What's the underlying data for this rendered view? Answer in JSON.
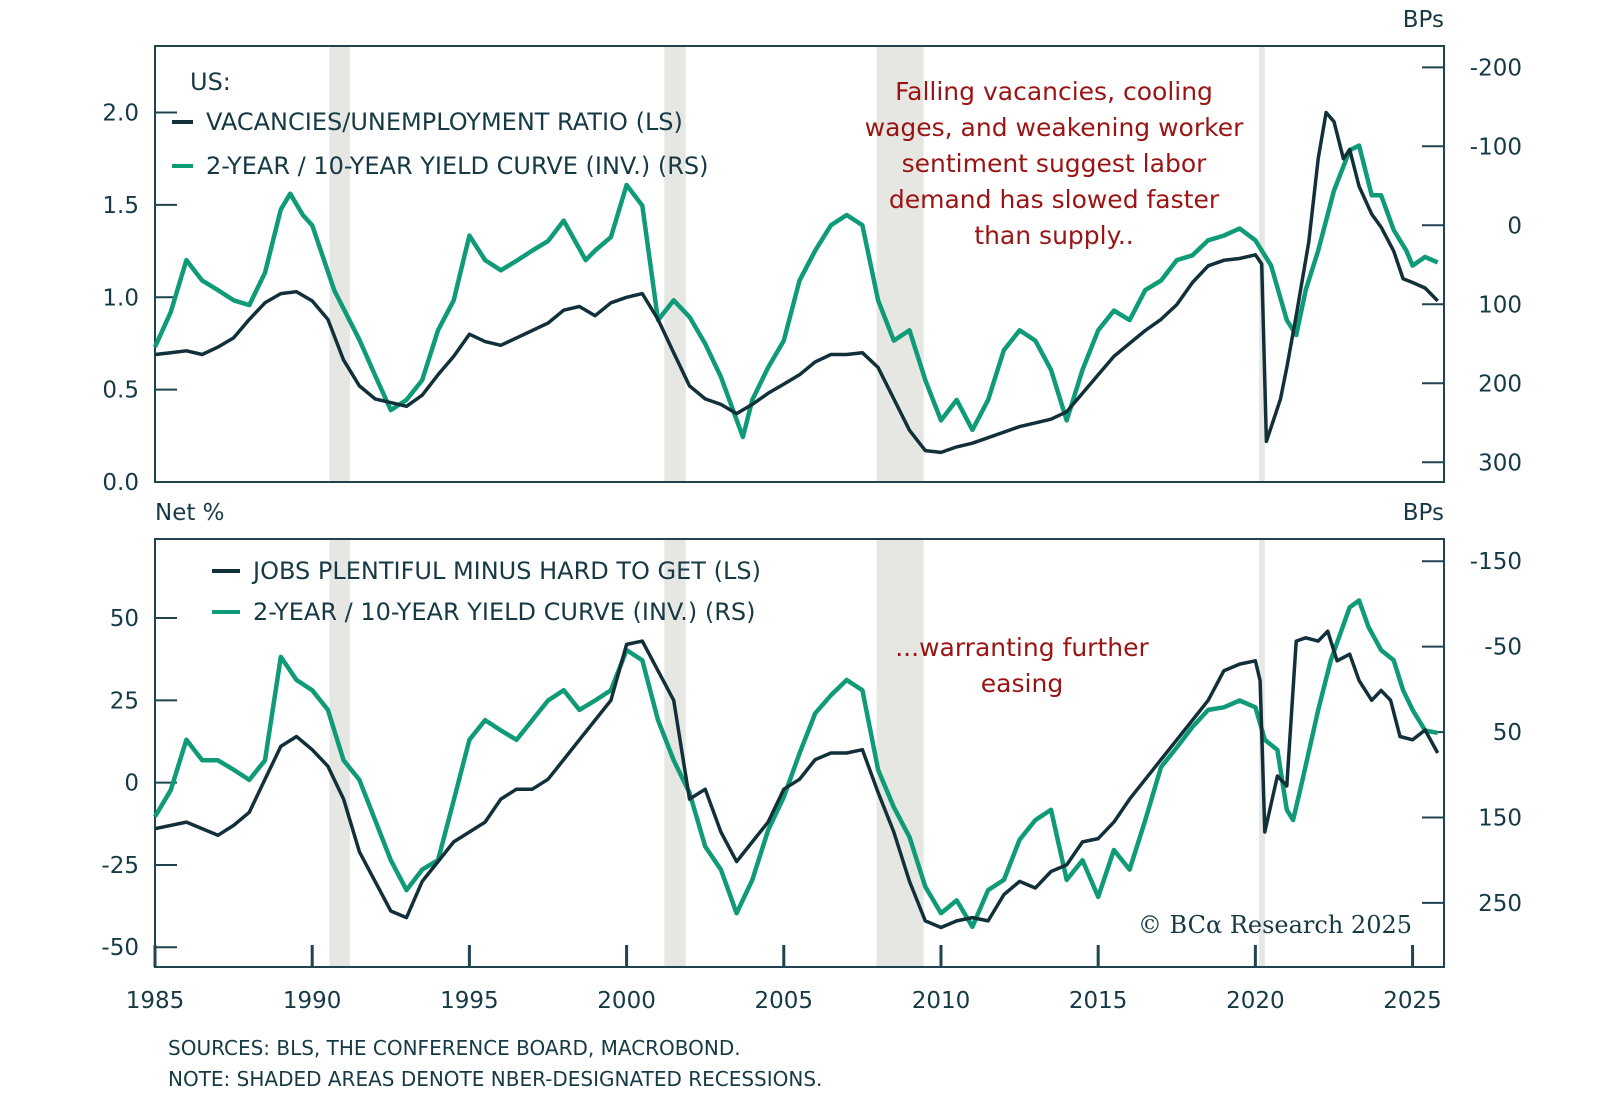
{
  "chart_data": [
    {
      "type": "line",
      "panel": "top",
      "title": "US:",
      "xlim": [
        1985,
        2026
      ],
      "left_axis": {
        "label": "",
        "ylim": [
          0.0,
          2.36
        ],
        "ticks": [
          0.0,
          0.5,
          1.0,
          1.5,
          2.0
        ],
        "tick_labels": [
          "0.0",
          "0.5",
          "1.0",
          "1.5",
          "2.0"
        ]
      },
      "right_axis": {
        "label": "BPs",
        "inverted": true,
        "ylim": [
          -227,
          325
        ],
        "ticks": [
          -200,
          -100,
          0,
          100,
          200,
          300
        ],
        "tick_labels": [
          "-200",
          "-100",
          "0",
          "100",
          "200",
          "300"
        ]
      },
      "annotation": [
        "Falling vacancies, cooling",
        "wages, and weakening worker",
        "sentiment suggest labor",
        "demand has slowed faster",
        "than supply.."
      ],
      "series": [
        {
          "name": "VACANCIES/UNEMPLOYMENT RATIO (LS)",
          "axis": "left",
          "color": "#12303a",
          "x": [
            1985,
            1985.5,
            1986,
            1986.5,
            1987,
            1987.5,
            1988,
            1988.5,
            1989,
            1989.5,
            1990,
            1990.5,
            1991,
            1991.5,
            1992,
            1992.5,
            1993,
            1993.5,
            1994,
            1994.5,
            1995,
            1995.5,
            1996,
            1996.5,
            1997,
            1997.5,
            1998,
            1998.5,
            1999,
            1999.5,
            2000,
            2000.5,
            2001,
            2001.5,
            2002,
            2002.5,
            2003,
            2003.5,
            2004,
            2004.5,
            2005,
            2005.5,
            2006,
            2006.5,
            2007,
            2007.5,
            2008,
            2008.5,
            2009,
            2009.5,
            2010,
            2010.5,
            2011,
            2011.5,
            2012,
            2012.5,
            2013,
            2013.5,
            2014,
            2014.5,
            2015,
            2015.5,
            2016,
            2016.5,
            2017,
            2017.5,
            2018,
            2018.5,
            2019,
            2019.5,
            2020,
            2020.2,
            2020.35,
            2020.8,
            2021,
            2021.3,
            2021.7,
            2022,
            2022.25,
            2022.5,
            2022.8,
            2023,
            2023.3,
            2023.7,
            2024,
            2024.4,
            2024.7,
            2025,
            2025.4,
            2025.8
          ],
          "values": [
            0.69,
            0.7,
            0.71,
            0.69,
            0.73,
            0.78,
            0.88,
            0.97,
            1.02,
            1.03,
            0.98,
            0.88,
            0.66,
            0.52,
            0.45,
            0.43,
            0.41,
            0.47,
            0.58,
            0.68,
            0.8,
            0.76,
            0.74,
            0.78,
            0.82,
            0.86,
            0.93,
            0.95,
            0.9,
            0.97,
            1.0,
            1.02,
            0.88,
            0.7,
            0.52,
            0.45,
            0.42,
            0.37,
            0.42,
            0.48,
            0.53,
            0.58,
            0.65,
            0.69,
            0.69,
            0.7,
            0.62,
            0.45,
            0.28,
            0.17,
            0.16,
            0.19,
            0.21,
            0.24,
            0.27,
            0.3,
            0.32,
            0.34,
            0.38,
            0.48,
            0.58,
            0.68,
            0.75,
            0.82,
            0.88,
            0.96,
            1.08,
            1.17,
            1.2,
            1.21,
            1.23,
            1.18,
            0.22,
            0.45,
            0.62,
            0.9,
            1.3,
            1.75,
            2.0,
            1.95,
            1.75,
            1.8,
            1.6,
            1.45,
            1.38,
            1.25,
            1.1,
            1.08,
            1.05,
            0.98
          ]
        },
        {
          "name": "2-YEAR / 10-YEAR YIELD CURVE (INV.) (RS)",
          "axis": "right",
          "color": "#109b78",
          "x": [
            1985,
            1985.5,
            1986,
            1986.5,
            1987,
            1987.5,
            1988,
            1988.5,
            1989,
            1989.3,
            1989.7,
            1990,
            1990.7,
            1991.5,
            1992,
            1992.5,
            1993,
            1993.5,
            1994,
            1994.5,
            1995,
            1995.5,
            1996,
            1996.5,
            1997,
            1997.5,
            1998,
            1998.7,
            1999,
            1999.5,
            2000,
            2000.5,
            2001,
            2001.5,
            2002,
            2002.5,
            2003,
            2003.7,
            2004,
            2004.5,
            2005,
            2005.5,
            2006,
            2006.5,
            2007,
            2007.5,
            2008,
            2008.5,
            2009,
            2009.5,
            2010,
            2010.5,
            2011,
            2011.5,
            2012,
            2012.5,
            2013,
            2013.5,
            2014,
            2014.5,
            2015,
            2015.5,
            2016,
            2016.5,
            2017,
            2017.5,
            2018,
            2018.5,
            2019,
            2019.5,
            2020,
            2020.5,
            2021,
            2021.3,
            2021.6,
            2022,
            2022.5,
            2023,
            2023.3,
            2023.7,
            2024,
            2024.4,
            2024.8,
            2025,
            2025.4,
            2025.8
          ],
          "values": [
            154,
            110,
            44,
            70,
            82,
            95,
            101,
            60,
            -20,
            -40,
            -13,
            0,
            82,
            145,
            190,
            234,
            221,
            196,
            133,
            95,
            13,
            44,
            57,
            45,
            32,
            20,
            -6,
            44,
            32,
            15,
            -51,
            -25,
            120,
            95,
            116,
            150,
            192,
            268,
            221,
            180,
            146,
            70,
            32,
            0,
            -13,
            0,
            95,
            146,
            133,
            196,
            247,
            221,
            259,
            221,
            158,
            133,
            146,
            183,
            247,
            183,
            133,
            108,
            120,
            82,
            70,
            44,
            38,
            19,
            13,
            4,
            19,
            51,
            120,
            139,
            82,
            32,
            -44,
            -95,
            -101,
            -38,
            -38,
            6,
            32,
            51,
            40,
            47
          ]
        }
      ]
    },
    {
      "type": "line",
      "panel": "bottom",
      "xlim": [
        1985,
        2026
      ],
      "xticks": [
        1985,
        1990,
        1995,
        2000,
        2005,
        2010,
        2015,
        2020,
        2025
      ],
      "xtick_labels": [
        "1985",
        "1990",
        "1995",
        "2000",
        "2005",
        "2010",
        "2015",
        "2020",
        "2025"
      ],
      "left_axis": {
        "label": "Net %",
        "ylim": [
          -56,
          74
        ],
        "ticks": [
          -50,
          -25,
          0,
          25,
          50
        ],
        "tick_labels": [
          "-50",
          "-25",
          "0",
          "25",
          "50"
        ]
      },
      "right_axis": {
        "label": "BPs",
        "inverted": true,
        "ylim": [
          -176,
          325
        ],
        "ticks": [
          -150,
          -50,
          50,
          150,
          250
        ],
        "tick_labels": [
          "-150",
          "-50",
          "50",
          "150",
          "250"
        ]
      },
      "annotation": [
        "...warranting further",
        "easing"
      ],
      "series": [
        {
          "name": "JOBS PLENTIFUL MINUS HARD TO GET (LS)",
          "axis": "left",
          "color": "#12303a",
          "x": [
            1985,
            1986,
            1987,
            1987.5,
            1988,
            1988.5,
            1989,
            1989.5,
            1990,
            1990.5,
            1991,
            1991.5,
            1992,
            1992.5,
            1993,
            1993.5,
            1994,
            1994.5,
            1995,
            1995.5,
            1996,
            1996.5,
            1997,
            1997.5,
            1998,
            1998.5,
            1999,
            1999.5,
            2000,
            2000.5,
            2001,
            2001.5,
            2002,
            2002.5,
            2003,
            2003.5,
            2004,
            2004.5,
            2005,
            2005.5,
            2006,
            2006.5,
            2007,
            2007.5,
            2008,
            2008.5,
            2009,
            2009.5,
            2010,
            2010.5,
            2011,
            2011.5,
            2012,
            2012.5,
            2013,
            2013.5,
            2014,
            2014.5,
            2015,
            2015.5,
            2016,
            2016.5,
            2017,
            2017.5,
            2018,
            2018.5,
            2019,
            2019.5,
            2020,
            2020.15,
            2020.3,
            2020.7,
            2021,
            2021.3,
            2021.6,
            2022,
            2022.3,
            2022.6,
            2023,
            2023.3,
            2023.7,
            2024,
            2024.3,
            2024.6,
            2025,
            2025.4,
            2025.8
          ],
          "values": [
            -14,
            -12,
            -16,
            -13,
            -9,
            1,
            11,
            14,
            10,
            5,
            -5,
            -21,
            -30,
            -39,
            -41,
            -30,
            -24,
            -18,
            -15,
            -12,
            -5,
            -2,
            -2,
            1,
            7,
            13,
            19,
            25,
            42,
            43,
            34,
            25,
            -5,
            -2,
            -15,
            -24,
            -18,
            -12,
            -2,
            1,
            7,
            9,
            9,
            10,
            -3,
            -15,
            -30,
            -42,
            -44,
            -42,
            -41,
            -42,
            -34,
            -30,
            -32,
            -27,
            -25,
            -18,
            -17,
            -12,
            -5,
            1,
            7,
            13,
            19,
            25,
            34,
            36,
            37,
            31,
            -15,
            2,
            -1,
            43,
            44,
            43,
            46,
            37,
            39,
            31,
            25,
            28,
            25,
            14,
            13,
            16,
            9
          ]
        },
        {
          "name": "2-YEAR / 10-YEAR YIELD CURVE (INV.) (RS)",
          "axis": "right",
          "color": "#109b78",
          "x": [
            1985,
            1985.5,
            1986,
            1986.5,
            1987,
            1987.5,
            1988,
            1988.5,
            1989,
            1989.5,
            1990,
            1990.5,
            1991,
            1991.5,
            1992,
            1992.5,
            1993,
            1993.5,
            1994,
            1994.5,
            1995,
            1995.5,
            1996,
            1996.5,
            1997,
            1997.5,
            1998,
            1998.5,
            1999,
            1999.5,
            2000,
            2000.5,
            2001,
            2001.5,
            2002,
            2002.5,
            2003,
            2003.5,
            2004,
            2004.5,
            2005,
            2005.5,
            2006,
            2006.5,
            2007,
            2007.5,
            2008,
            2008.5,
            2009,
            2009.5,
            2010,
            2010.5,
            2011,
            2011.5,
            2012,
            2012.5,
            2013,
            2013.5,
            2014,
            2014.5,
            2015,
            2015.5,
            2016,
            2016.5,
            2017,
            2017.5,
            2018,
            2018.5,
            2019,
            2019.5,
            2020,
            2020.3,
            2020.7,
            2021,
            2021.2,
            2021.5,
            2022,
            2022.4,
            2023,
            2023.3,
            2023.6,
            2024,
            2024.4,
            2024.7,
            2025,
            2025.4,
            2025.8
          ],
          "values": [
            149,
            118,
            59,
            83,
            83,
            94,
            106,
            83,
            -38,
            -11,
            1,
            24,
            83,
            106,
            153,
            200,
            235,
            211,
            200,
            130,
            59,
            36,
            48,
            59,
            36,
            13,
            1,
            24,
            13,
            1,
            -46,
            -34,
            36,
            83,
            121,
            184,
            211,
            262,
            223,
            165,
            126,
            75,
            28,
            7,
            -11,
            1,
            94,
            138,
            173,
            231,
            262,
            247,
            278,
            235,
            223,
            176,
            153,
            141,
            223,
            200,
            243,
            188,
            211,
            153,
            91,
            68,
            44,
            24,
            21,
            13,
            21,
            59,
            71,
            141,
            153,
            106,
            24,
            -34,
            -96,
            -104,
            -73,
            -46,
            -34,
            1,
            24,
            48,
            51
          ]
        }
      ]
    }
  ],
  "recessions": [
    [
      1990.55,
      1991.2
    ],
    [
      2001.2,
      2001.88
    ],
    [
      2007.95,
      2009.45
    ],
    [
      2020.12,
      2020.3
    ]
  ],
  "top_panel": {
    "title": "US:",
    "right_unit": "BPs",
    "legend": [
      "VACANCIES/UNEMPLOYMENT RATIO (LS)",
      "2-YEAR / 10-YEAR YIELD CURVE (INV.) (RS)"
    ],
    "annotation": [
      "Falling vacancies, cooling",
      "wages, and weakening worker",
      "sentiment suggest labor",
      "demand has slowed faster",
      "than supply.."
    ],
    "left_ticks": [
      "2.0",
      "1.5",
      "1.0",
      "0.5",
      "0.0"
    ],
    "right_ticks": [
      "-200",
      "-100",
      "0",
      "100",
      "200",
      "300"
    ]
  },
  "bottom_panel": {
    "left_unit": "Net %",
    "right_unit": "BPs",
    "legend": [
      "JOBS PLENTIFUL MINUS HARD TO GET (LS)",
      "2-YEAR / 10-YEAR YIELD CURVE (INV.) (RS)"
    ],
    "annotation": [
      "...warranting further",
      "easing"
    ],
    "left_ticks": [
      "50",
      "25",
      "0",
      "-25",
      "-50"
    ],
    "right_ticks": [
      "-150",
      "-50",
      "50",
      "150",
      "250"
    ],
    "x_ticks": [
      "1985",
      "1990",
      "1995",
      "2000",
      "2005",
      "2010",
      "2015",
      "2020",
      "2025"
    ]
  },
  "credit": "© BCα Research 2025",
  "footer": {
    "sources": "SOURCES: BLS, THE CONFERENCE BOARD, MACROBOND.",
    "note": "NOTE: SHADED AREAS DENOTE NBER-DESIGNATED RECESSIONS."
  },
  "colors": {
    "dark_series": "#12303a",
    "teal_series": "#109b78",
    "axis": "#1f4450",
    "recession_shade": "#e6e6e2",
    "annotation": "#9b1414"
  }
}
